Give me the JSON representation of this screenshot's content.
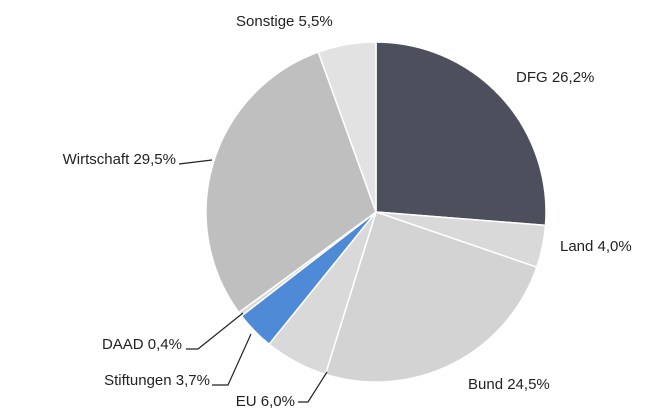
{
  "chart_data": {
    "type": "pie",
    "categories": [
      "DFG",
      "Land",
      "Bund",
      "EU",
      "Stiftungen",
      "DAAD",
      "Wirtschaft",
      "Sonstige"
    ],
    "values": [
      26.2,
      4.0,
      24.5,
      6.0,
      3.7,
      0.4,
      29.5,
      5.5
    ],
    "value_labels": [
      "26,2%",
      "4,0%",
      "24,5%",
      "6,0%",
      "3,7%",
      "0,4%",
      "29,5%",
      "5,5%"
    ],
    "colors": [
      "#4d505c",
      "#d9d9d9",
      "#d3d3d3",
      "#d9d9d9",
      "#4f8ad6",
      "#d9d9d9",
      "#bfbfbf",
      "#e2e2e2"
    ]
  }
}
